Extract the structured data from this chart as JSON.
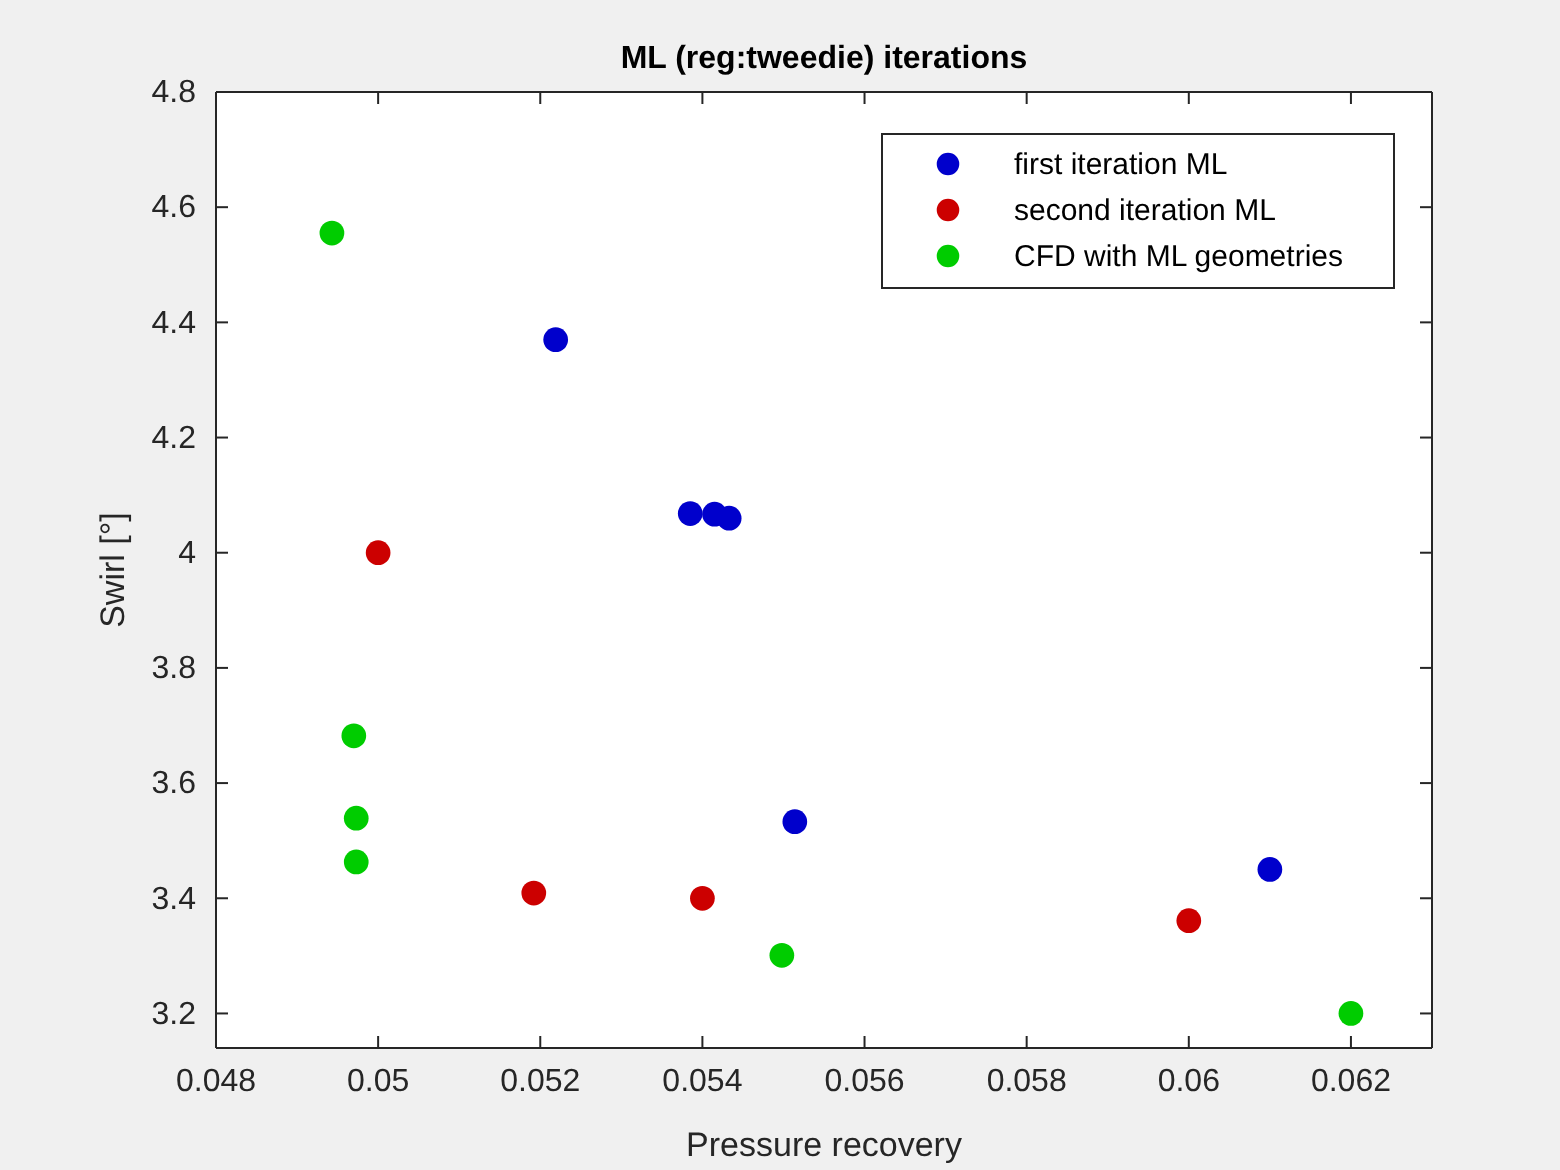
{
  "chart_data": {
    "type": "scatter",
    "title": "ML (reg:tweedie) iterations",
    "xlabel": "Pressure recovery",
    "ylabel": "Swirl [°]",
    "series": [
      {
        "name": "first iteration ML",
        "color": "#0000cc",
        "x": [
          0.05219,
          0.05385,
          0.05415,
          0.05433,
          0.05514,
          0.061
        ],
        "values": [
          4.37,
          4.068,
          4.067,
          4.06,
          3.533,
          3.45
        ]
      },
      {
        "name": "second iteration ML",
        "color": "#cc0000",
        "x": [
          0.05,
          0.05192,
          0.054,
          0.06
        ],
        "values": [
          4.0,
          3.409,
          3.4,
          3.361
        ]
      },
      {
        "name": "CFD with ML geometries",
        "color": "#00cc00",
        "x": [
          0.04943,
          0.0497,
          0.04973,
          0.04973,
          0.05498,
          0.062
        ],
        "values": [
          4.555,
          3.682,
          3.539,
          3.463,
          3.301,
          3.2
        ]
      }
    ],
    "xlim": [
      0.048,
      0.063
    ],
    "xticks": [
      0.048,
      0.05,
      0.052,
      0.054,
      0.056,
      0.058,
      0.06,
      0.062
    ],
    "ylim": [
      3.14,
      4.8
    ],
    "yticks": [
      3.2,
      3.4,
      3.6,
      3.8,
      4,
      4.2,
      4.4,
      4.6,
      4.8
    ],
    "grid": false,
    "legend": "top right",
    "marker": "circle"
  }
}
